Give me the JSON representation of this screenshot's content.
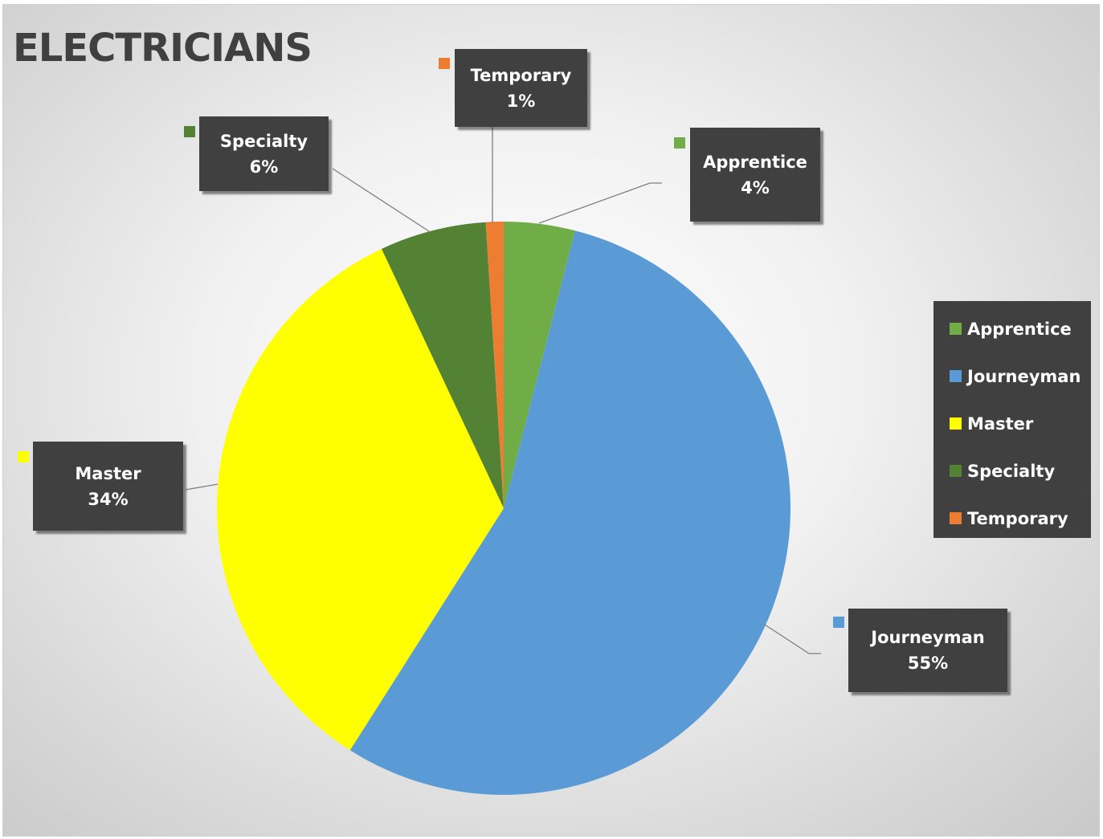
{
  "chart_data": {
    "type": "pie",
    "title": "ELECTRICIANS",
    "categories": [
      "Apprentice",
      "Journeyman",
      "Master",
      "Specialty",
      "Temporary"
    ],
    "values": [
      4,
      55,
      34,
      6,
      1
    ],
    "labels": [
      "4%",
      "55%",
      "34%",
      "6%",
      "1%"
    ],
    "colors": [
      "#70AD47",
      "#5B9BD5",
      "#FFFF00",
      "#548235",
      "#ED7D31"
    ],
    "legend_position": "right"
  }
}
